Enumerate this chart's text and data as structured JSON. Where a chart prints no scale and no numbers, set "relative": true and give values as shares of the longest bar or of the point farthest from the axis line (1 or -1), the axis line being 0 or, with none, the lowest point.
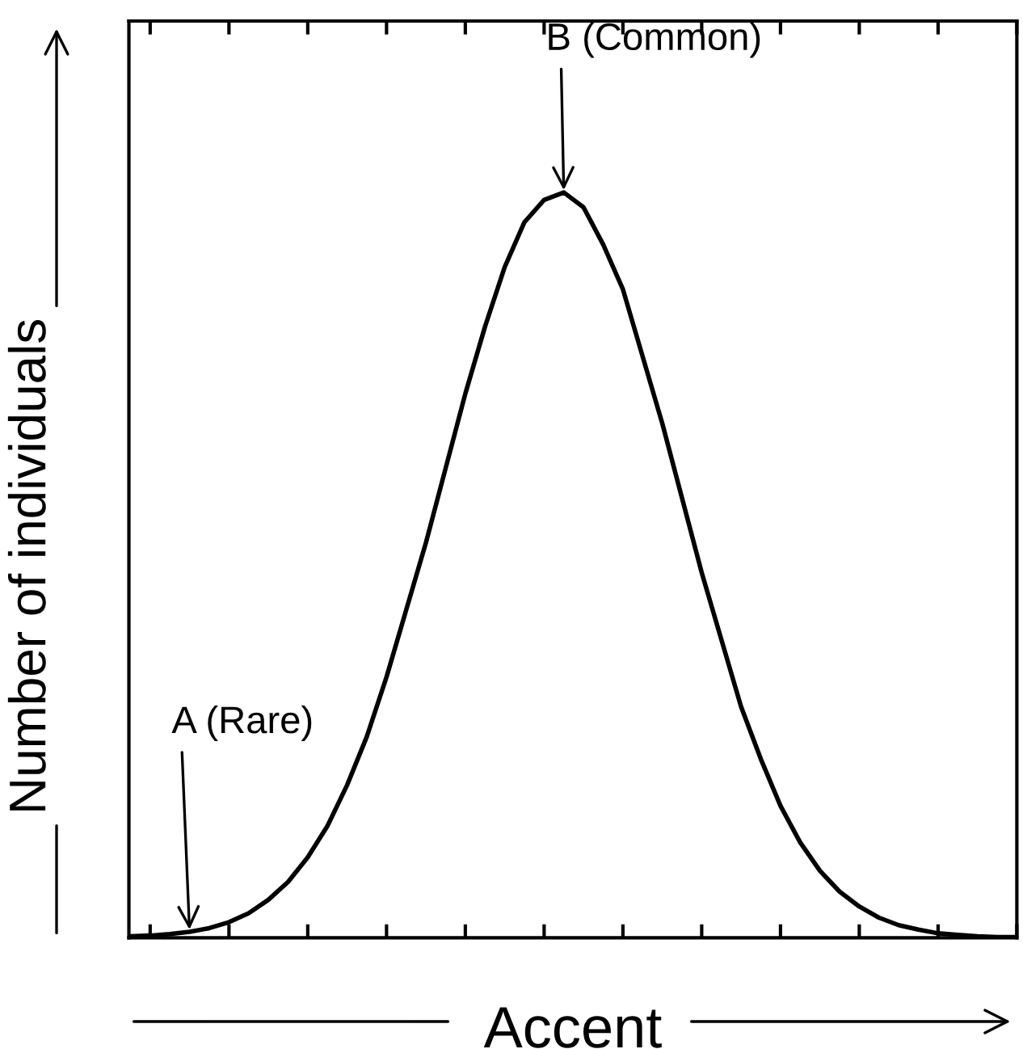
{
  "chart_data": {
    "type": "line",
    "relative": true,
    "xlabel": "Accent",
    "ylabel": "Number of individuals",
    "categories": [
      null,
      null,
      null,
      null,
      null,
      null,
      null,
      null,
      null,
      null,
      null,
      null,
      null,
      null,
      null,
      null,
      null,
      null,
      null,
      null,
      null,
      null,
      null,
      null,
      null,
      null,
      null,
      null,
      null,
      null,
      null,
      null,
      null,
      null,
      null,
      null,
      null,
      null,
      null,
      null,
      null,
      null,
      null,
      null,
      null,
      null
    ],
    "tick_labels": false,
    "grid": false,
    "legend": false,
    "marker": "none",
    "line_style": "solid",
    "series": [
      {
        "color": "#000000",
        "values": [
          0.002,
          0.003,
          0.005,
          0.008,
          0.013,
          0.021,
          0.033,
          0.051,
          0.075,
          0.108,
          0.15,
          0.205,
          0.27,
          0.35,
          0.44,
          0.53,
          0.63,
          0.73,
          0.82,
          0.9,
          0.96,
          0.99,
          1,
          0.98,
          0.93,
          0.87,
          0.78,
          0.69,
          0.59,
          0.49,
          0.4,
          0.31,
          0.24,
          0.177,
          0.128,
          0.09,
          0.062,
          0.042,
          0.027,
          0.017,
          0.011,
          0.006,
          0.004,
          0.002,
          0.001,
          0.001
        ]
      }
    ],
    "annotations": [
      "A (Rare)",
      "B (Common)"
    ]
  }
}
